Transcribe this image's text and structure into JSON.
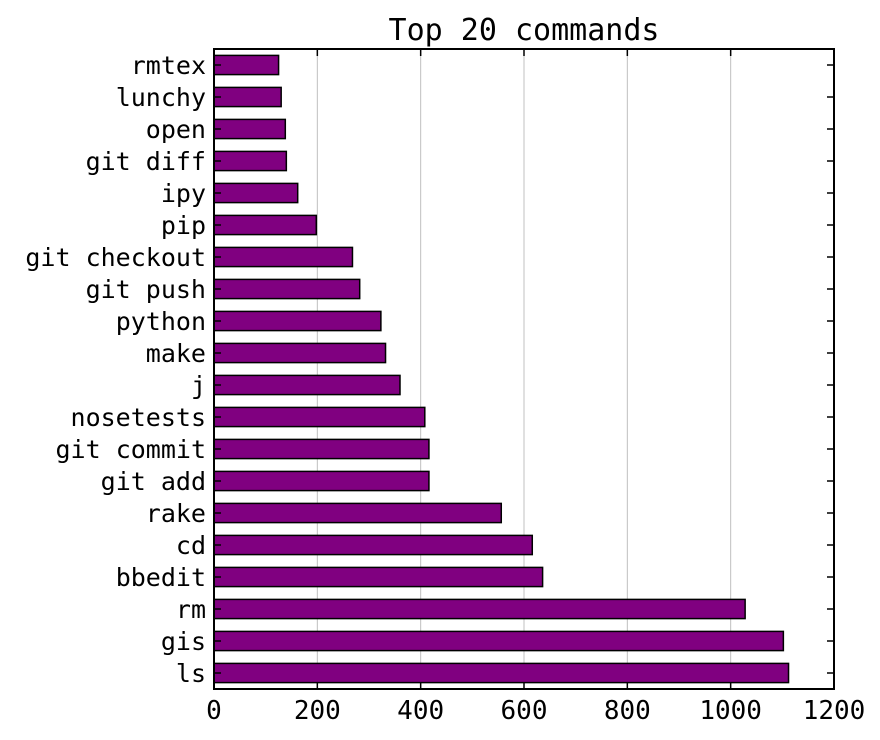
{
  "chart_data": {
    "type": "bar",
    "orientation": "horizontal",
    "title": "Top 20 commands",
    "xlabel": "",
    "ylabel": "",
    "xlim": [
      0,
      1200
    ],
    "xticks": [
      "0",
      "200",
      "400",
      "600",
      "800",
      "1000",
      "1200"
    ],
    "grid": "vertical lines at x ticks",
    "bar_color": "#800080",
    "bar_edge_color": "#000000",
    "categories": [
      "rmtex",
      "lunchy",
      "open",
      "git diff",
      "ipy",
      "pip",
      "git checkout",
      "git push",
      "python",
      "make",
      "j",
      "nosetests",
      "git commit",
      "git add",
      "rake",
      "cd",
      "bbedit",
      "rm",
      "gis",
      "ls"
    ],
    "values": [
      125,
      130,
      138,
      140,
      162,
      198,
      268,
      282,
      323,
      332,
      360,
      408,
      416,
      416,
      556,
      616,
      636,
      1028,
      1102,
      1112
    ]
  }
}
